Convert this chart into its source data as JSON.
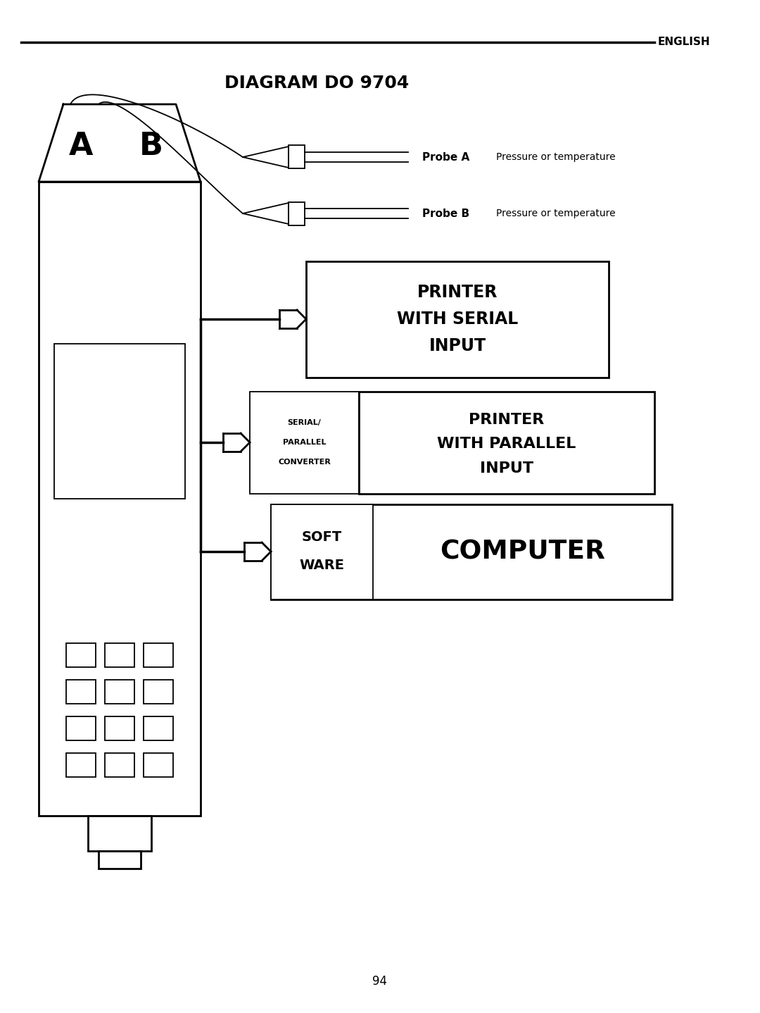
{
  "title": "DIAGRAM DO 9704",
  "header_label": "ENGLISH",
  "page_number": "94",
  "bg_color": "#ffffff",
  "probe_a_label": "Probe A",
  "probe_a_desc": "Pressure or temperature",
  "probe_b_label": "Probe B",
  "probe_b_desc": "Pressure or temperature",
  "box1_lines": [
    "PRINTER",
    "WITH SERIAL",
    "INPUT"
  ],
  "box2_small_lines": [
    "SERIAL/",
    "PARALLEL",
    "CONVERTER"
  ],
  "box2_large_lines": [
    "PRINTER",
    "WITH PARALLEL",
    "INPUT"
  ],
  "box3_small_lines": [
    "SOFT",
    "WARE"
  ],
  "box3_large_text": "COMPUTER"
}
